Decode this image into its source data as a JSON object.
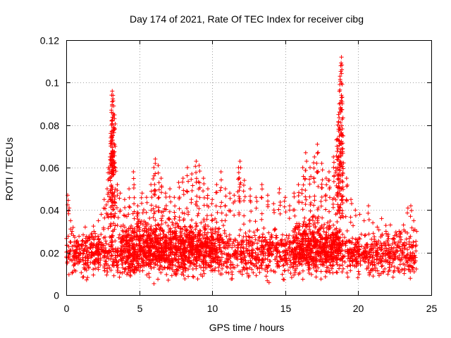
{
  "chart_data": {
    "type": "scatter",
    "title": "Day 174 of 2021, Rate Of TEC Index for receiver cibg",
    "xlabel": "GPS time / hours",
    "ylabel": "ROTI / TECUs",
    "xlim": [
      0,
      25
    ],
    "ylim": [
      0,
      0.12
    ],
    "xticks": [
      0,
      5,
      10,
      15,
      20,
      25
    ],
    "xtick_labels": [
      "0",
      "5",
      "10",
      "15",
      "20",
      "25"
    ],
    "yticks": [
      0,
      0.02,
      0.04,
      0.06,
      0.08,
      0.1,
      0.12
    ],
    "ytick_labels": [
      "0",
      "0.02",
      "0.04",
      "0.06",
      "0.08",
      "0.1",
      "0.12"
    ],
    "grid": true,
    "marker": "+",
    "color": "#ff0000",
    "series": [
      {
        "name": "ROTI",
        "points": [
          [
            0.1,
            0.047
          ],
          [
            0.2,
            0.041
          ],
          [
            0.3,
            0.035
          ],
          [
            0.4,
            0.03
          ],
          [
            0.5,
            0.028
          ],
          [
            0.7,
            0.025
          ],
          [
            0.9,
            0.022
          ],
          [
            1.1,
            0.024
          ],
          [
            1.3,
            0.032
          ],
          [
            1.6,
            0.027
          ],
          [
            1.9,
            0.03
          ],
          [
            2.2,
            0.035
          ],
          [
            2.4,
            0.038
          ],
          [
            2.6,
            0.045
          ],
          [
            2.8,
            0.05
          ],
          [
            2.9,
            0.06
          ],
          [
            3.0,
            0.065
          ],
          [
            3.05,
            0.074
          ],
          [
            3.1,
            0.08
          ],
          [
            3.1,
            0.086
          ],
          [
            3.15,
            0.091
          ],
          [
            3.15,
            0.096
          ],
          [
            3.2,
            0.094
          ],
          [
            3.25,
            0.089
          ],
          [
            3.3,
            0.083
          ],
          [
            3.35,
            0.07
          ],
          [
            3.5,
            0.052
          ],
          [
            3.7,
            0.048
          ],
          [
            4.0,
            0.045
          ],
          [
            4.3,
            0.05
          ],
          [
            4.6,
            0.058
          ],
          [
            4.9,
            0.042
          ],
          [
            5.2,
            0.048
          ],
          [
            5.5,
            0.046
          ],
          [
            5.8,
            0.052
          ],
          [
            6.0,
            0.06
          ],
          [
            6.1,
            0.064
          ],
          [
            6.3,
            0.061
          ],
          [
            6.5,
            0.055
          ],
          [
            6.8,
            0.048
          ],
          [
            7.1,
            0.05
          ],
          [
            7.4,
            0.046
          ],
          [
            7.7,
            0.053
          ],
          [
            8.0,
            0.055
          ],
          [
            8.3,
            0.06
          ],
          [
            8.6,
            0.057
          ],
          [
            8.9,
            0.063
          ],
          [
            9.1,
            0.061
          ],
          [
            9.4,
            0.055
          ],
          [
            9.7,
            0.05
          ],
          [
            10.0,
            0.045
          ],
          [
            10.3,
            0.052
          ],
          [
            10.6,
            0.058
          ],
          [
            10.9,
            0.05
          ],
          [
            11.2,
            0.048
          ],
          [
            11.5,
            0.047
          ],
          [
            11.8,
            0.06
          ],
          [
            11.9,
            0.063
          ],
          [
            12.2,
            0.054
          ],
          [
            12.6,
            0.05
          ],
          [
            13.0,
            0.046
          ],
          [
            13.4,
            0.052
          ],
          [
            13.8,
            0.047
          ],
          [
            14.2,
            0.043
          ],
          [
            14.6,
            0.05
          ],
          [
            15.0,
            0.046
          ],
          [
            15.3,
            0.042
          ],
          [
            15.6,
            0.048
          ],
          [
            15.9,
            0.052
          ],
          [
            16.2,
            0.06
          ],
          [
            16.4,
            0.067
          ],
          [
            16.7,
            0.06
          ],
          [
            17.0,
            0.065
          ],
          [
            17.2,
            0.071
          ],
          [
            17.5,
            0.062
          ],
          [
            17.8,
            0.055
          ],
          [
            18.0,
            0.058
          ],
          [
            18.3,
            0.065
          ],
          [
            18.5,
            0.073
          ],
          [
            18.6,
            0.08
          ],
          [
            18.65,
            0.085
          ],
          [
            18.7,
            0.09
          ],
          [
            18.75,
            0.103
          ],
          [
            18.8,
            0.108
          ],
          [
            18.85,
            0.112
          ],
          [
            18.9,
            0.09
          ],
          [
            18.95,
            0.075
          ],
          [
            19.2,
            0.055
          ],
          [
            19.5,
            0.045
          ],
          [
            19.8,
            0.04
          ],
          [
            20.1,
            0.038
          ],
          [
            20.4,
            0.035
          ],
          [
            20.7,
            0.042
          ],
          [
            21.0,
            0.034
          ],
          [
            21.3,
            0.032
          ],
          [
            21.6,
            0.036
          ],
          [
            21.9,
            0.03
          ],
          [
            22.2,
            0.033
          ],
          [
            22.5,
            0.028
          ],
          [
            22.8,
            0.03
          ],
          [
            23.1,
            0.033
          ],
          [
            23.4,
            0.041
          ],
          [
            23.6,
            0.042
          ],
          [
            23.8,
            0.035
          ],
          [
            24.0,
            0.03
          ]
        ]
      }
    ],
    "density_band": {
      "description": "dense cloud of points",
      "bands": [
        [
          0,
          24,
          0.005,
          0.035
        ],
        [
          3.8,
          10.5,
          0.005,
          0.042
        ],
        [
          15.5,
          18.8,
          0.005,
          0.042
        ]
      ]
    }
  }
}
